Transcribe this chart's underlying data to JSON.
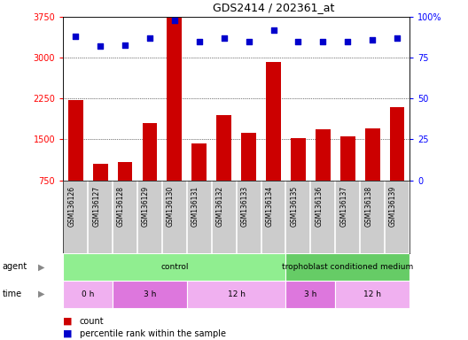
{
  "title": "GDS2414 / 202361_at",
  "samples": [
    "GSM136126",
    "GSM136127",
    "GSM136128",
    "GSM136129",
    "GSM136130",
    "GSM136131",
    "GSM136132",
    "GSM136133",
    "GSM136134",
    "GSM136135",
    "GSM136136",
    "GSM136137",
    "GSM136138",
    "GSM136139"
  ],
  "counts": [
    2220,
    1050,
    1080,
    1800,
    3730,
    1430,
    1950,
    1620,
    2920,
    1520,
    1680,
    1550,
    1700,
    2100
  ],
  "percentile_ranks": [
    88,
    82,
    83,
    87,
    98,
    85,
    87,
    85,
    92,
    85,
    85,
    85,
    86,
    87
  ],
  "ylim_left": [
    750,
    3750
  ],
  "ylim_right": [
    0,
    100
  ],
  "yticks_left": [
    750,
    1500,
    2250,
    3000,
    3750
  ],
  "yticks_right": [
    0,
    25,
    50,
    75,
    100
  ],
  "bar_color": "#cc0000",
  "dot_color": "#0000cc",
  "agent_groups": [
    {
      "label": "control",
      "start": 0,
      "end": 9,
      "color": "#90ee90"
    },
    {
      "label": "trophoblast conditioned medium",
      "start": 9,
      "end": 14,
      "color": "#66cc66"
    }
  ],
  "time_groups": [
    {
      "label": "0 h",
      "start": 0,
      "end": 2,
      "color": "#f0b0f0"
    },
    {
      "label": "3 h",
      "start": 2,
      "end": 5,
      "color": "#dd77dd"
    },
    {
      "label": "12 h",
      "start": 5,
      "end": 9,
      "color": "#f0b0f0"
    },
    {
      "label": "3 h",
      "start": 9,
      "end": 11,
      "color": "#dd77dd"
    },
    {
      "label": "12 h",
      "start": 11,
      "end": 14,
      "color": "#f0b0f0"
    }
  ],
  "label_bg_color": "#cccccc",
  "label_separator_color": "#ffffff"
}
